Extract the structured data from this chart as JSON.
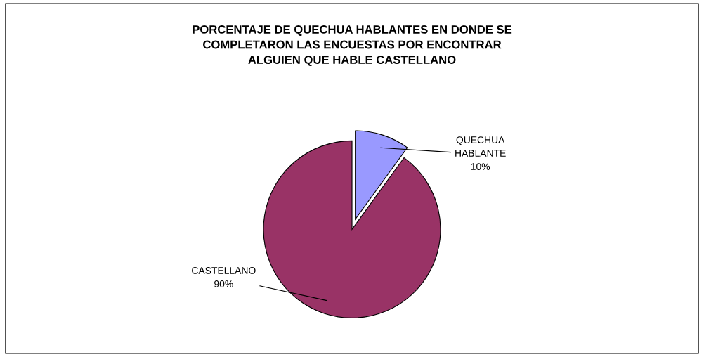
{
  "chart_data": {
    "type": "pie",
    "title": "PORCENTAJE DE QUECHUA HABLANTES EN DONDE SE\nCOMPLETARON LAS ENCUESTAS POR ENCONTRAR\nALGUIEN QUE HABLE CASTELLANO",
    "categories": [
      "QUECHUA\nHABLANTE",
      "CASTELLANO"
    ],
    "values": [
      10,
      90
    ],
    "value_labels": [
      "10%",
      "90%"
    ],
    "colors": [
      "#9999ff",
      "#993366"
    ],
    "legend": false
  }
}
